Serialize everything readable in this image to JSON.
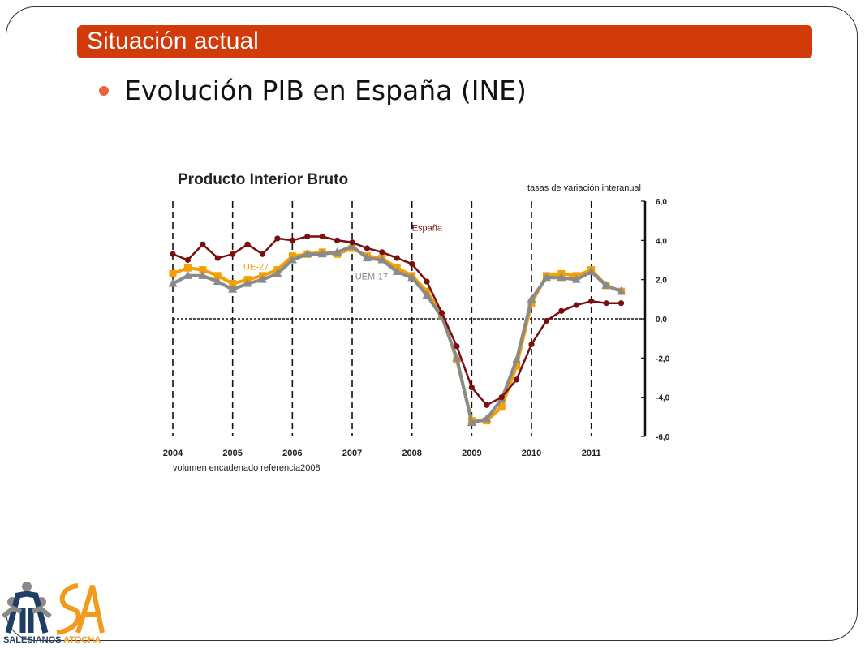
{
  "slide": {
    "title": "Situación actual",
    "bullet": "Evolución PIB en España (INE)"
  },
  "colors": {
    "title_bar": "#d23a0a",
    "espana": "#7b0e0e",
    "ue27": "#f5a000",
    "uem17": "#8a8a8a"
  },
  "logo": {
    "word1": "SALESIANOS",
    "word2": "ATOCHA",
    "icon": "people-sa-logo-icon"
  },
  "chart_data": {
    "type": "line",
    "title": "Producto Interior Bruto",
    "subtitle": "tasas de variación interanual",
    "footnote": "volumen encadenado referencia2008",
    "ylim": [
      -6,
      6
    ],
    "y_ticks": [
      "6,0",
      "4,0",
      "2,0",
      "0,0",
      "-2,0",
      "-4,0",
      "-6,0"
    ],
    "y_tick_values": [
      6,
      4,
      2,
      0,
      -2,
      -4,
      -6
    ],
    "x_ticks": [
      "2004",
      "2005",
      "2006",
      "2007",
      "2008",
      "2009",
      "2010",
      "2011"
    ],
    "x_tick_values": [
      2004,
      2005,
      2006,
      2007,
      2008,
      2009,
      2010,
      2011
    ],
    "xlim": [
      2004,
      2011.9
    ],
    "x": [
      2004.0,
      2004.25,
      2004.5,
      2004.75,
      2005.0,
      2005.25,
      2005.5,
      2005.75,
      2006.0,
      2006.25,
      2006.5,
      2006.75,
      2007.0,
      2007.25,
      2007.5,
      2007.75,
      2008.0,
      2008.25,
      2008.5,
      2008.75,
      2009.0,
      2009.25,
      2009.5,
      2009.75,
      2010.0,
      2010.25,
      2010.5,
      2010.75,
      2011.0,
      2011.25,
      2011.5
    ],
    "series": [
      {
        "name": "España",
        "marker": "circle",
        "values": [
          3.3,
          3.0,
          3.8,
          3.1,
          3.3,
          3.8,
          3.3,
          4.1,
          4.0,
          4.2,
          4.2,
          4.0,
          3.9,
          3.6,
          3.4,
          3.1,
          2.8,
          1.9,
          0.3,
          -1.4,
          -3.5,
          -4.4,
          -4.0,
          -3.1,
          -1.3,
          -0.1,
          0.4,
          0.7,
          0.9,
          0.8,
          0.8
        ]
      },
      {
        "name": "UE-27",
        "marker": "square",
        "values": [
          2.3,
          2.6,
          2.5,
          2.2,
          1.8,
          2.0,
          2.2,
          2.5,
          3.2,
          3.3,
          3.4,
          3.3,
          3.6,
          3.2,
          3.1,
          2.6,
          2.2,
          1.4,
          0.2,
          -2.1,
          -5.2,
          -5.2,
          -4.5,
          -2.4,
          0.8,
          2.2,
          2.3,
          2.2,
          2.5,
          1.7,
          1.4
        ]
      },
      {
        "name": "UEM-17",
        "marker": "triangle",
        "values": [
          1.8,
          2.2,
          2.2,
          1.9,
          1.5,
          1.8,
          2.0,
          2.3,
          3.0,
          3.3,
          3.3,
          3.4,
          3.7,
          3.1,
          3.0,
          2.4,
          2.1,
          1.2,
          0.1,
          -2.0,
          -5.3,
          -5.1,
          -4.1,
          -2.1,
          1.0,
          2.1,
          2.1,
          2.0,
          2.4,
          1.7,
          1.4
        ]
      }
    ]
  }
}
